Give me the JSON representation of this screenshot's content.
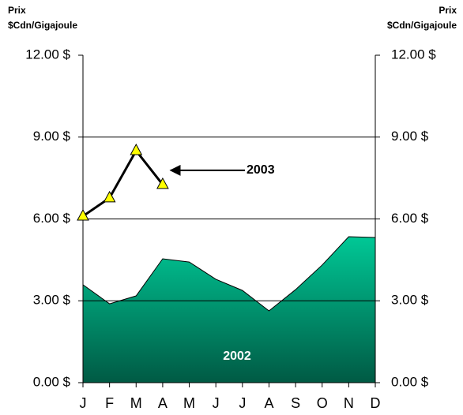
{
  "chart_data": {
    "type": "line",
    "y_label": [
      "Prix",
      "$Cdn/Gigajoule"
    ],
    "y2_label": [
      "Prix",
      "$Cdn/Gigajoule"
    ],
    "categories": [
      "J",
      "F",
      "M",
      "A",
      "M",
      "J",
      "J",
      "A",
      "S",
      "O",
      "N",
      "D"
    ],
    "series": [
      {
        "name": "2002",
        "style": "area",
        "color": "#00c896",
        "color_dark": "#005a44",
        "values": [
          3.59,
          2.89,
          3.18,
          4.54,
          4.42,
          3.79,
          3.38,
          2.63,
          3.41,
          4.31,
          5.35,
          5.32
        ]
      },
      {
        "name": "2003",
        "style": "line",
        "color": "#000000",
        "marker_color": "#ffff00",
        "values": [
          6.1,
          6.77,
          8.5,
          7.26,
          null,
          null,
          null,
          null,
          null,
          null,
          null,
          null
        ]
      }
    ],
    "ylim": [
      0,
      12
    ],
    "yticks": [
      {
        "value": 0,
        "label": "0.00 $"
      },
      {
        "value": 3,
        "label": "3.00 $"
      },
      {
        "value": 6,
        "label": "6.00 $"
      },
      {
        "value": 9,
        "label": "9.00 $"
      },
      {
        "value": 12,
        "label": "12.00 $"
      }
    ],
    "y2lim": [
      0,
      12
    ],
    "y2ticks": [
      {
        "value": 0,
        "label": "0.00 $"
      },
      {
        "value": 3,
        "label": "3.00 $"
      },
      {
        "value": 6,
        "label": "6.00 $"
      },
      {
        "value": 9,
        "label": "9.00 $"
      },
      {
        "value": 12,
        "label": "12.00 $"
      }
    ],
    "grid": true
  }
}
